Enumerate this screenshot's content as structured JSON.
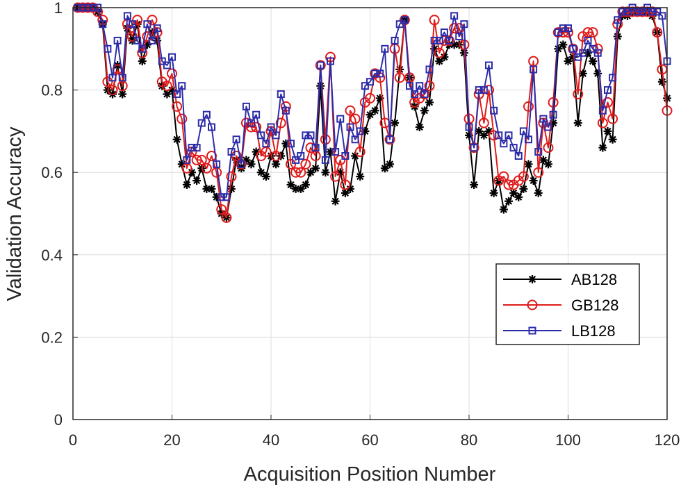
{
  "chart_data": {
    "type": "line",
    "title": "",
    "xlabel": "Acquisition Position Number",
    "ylabel": "Validation Accuracy",
    "xlim": [
      0,
      120
    ],
    "ylim": [
      0,
      1
    ],
    "xticks": [
      0,
      20,
      40,
      60,
      80,
      100,
      120
    ],
    "yticks": [
      0,
      0.2,
      0.4,
      0.6,
      0.8,
      1
    ],
    "ytick_labels": [
      "0",
      "0.2",
      "0.4",
      "0.6",
      "0.8",
      "1"
    ],
    "grid": true,
    "legend_position": "lower-right",
    "series": [
      {
        "name": "AB128",
        "color": "#000000",
        "marker": "asterisk",
        "x": [
          1,
          2,
          3,
          4,
          5,
          6,
          7,
          8,
          9,
          10,
          11,
          12,
          13,
          14,
          15,
          16,
          17,
          18,
          19,
          20,
          21,
          22,
          23,
          24,
          25,
          26,
          27,
          28,
          29,
          30,
          31,
          32,
          33,
          34,
          35,
          36,
          37,
          38,
          39,
          40,
          41,
          42,
          43,
          44,
          45,
          46,
          47,
          48,
          49,
          50,
          51,
          52,
          53,
          54,
          55,
          56,
          57,
          58,
          59,
          60,
          61,
          62,
          63,
          64,
          65,
          66,
          67,
          68,
          69,
          70,
          71,
          72,
          73,
          74,
          75,
          76,
          77,
          78,
          79,
          80,
          81,
          82,
          83,
          84,
          85,
          86,
          87,
          88,
          89,
          90,
          91,
          92,
          93,
          94,
          95,
          96,
          97,
          98,
          99,
          100,
          101,
          102,
          103,
          104,
          105,
          106,
          107,
          108,
          109,
          110,
          111,
          112,
          113,
          114,
          115,
          116,
          117,
          118,
          119,
          120
        ],
        "values": [
          1.0,
          1.0,
          1.0,
          1.0,
          0.99,
          0.96,
          0.8,
          0.79,
          0.86,
          0.79,
          0.95,
          0.92,
          0.96,
          0.87,
          0.91,
          0.94,
          0.92,
          0.81,
          0.79,
          0.8,
          0.68,
          0.62,
          0.57,
          0.6,
          0.58,
          0.61,
          0.56,
          0.56,
          0.54,
          0.5,
          0.49,
          0.56,
          0.63,
          0.61,
          0.63,
          0.62,
          0.65,
          0.6,
          0.59,
          0.64,
          0.62,
          0.64,
          0.67,
          0.57,
          0.56,
          0.56,
          0.57,
          0.6,
          0.61,
          0.81,
          0.6,
          0.65,
          0.53,
          0.6,
          0.55,
          0.56,
          0.64,
          0.59,
          0.7,
          0.74,
          0.75,
          0.78,
          0.61,
          0.62,
          0.72,
          0.85,
          0.97,
          0.83,
          0.76,
          0.71,
          0.75,
          0.77,
          0.9,
          0.87,
          0.88,
          0.91,
          0.91,
          0.91,
          0.89,
          0.69,
          0.57,
          0.7,
          0.69,
          0.7,
          0.55,
          0.58,
          0.51,
          0.53,
          0.55,
          0.54,
          0.56,
          0.62,
          0.58,
          0.55,
          0.63,
          0.62,
          0.72,
          0.9,
          0.91,
          0.87,
          0.88,
          0.72,
          0.84,
          0.89,
          0.87,
          0.84,
          0.66,
          0.7,
          0.68,
          0.93,
          0.98,
          0.98,
          0.99,
          0.99,
          0.99,
          0.99,
          0.98,
          0.94,
          0.82,
          0.78
        ]
      },
      {
        "name": "GB128",
        "color": "#e01a1a",
        "marker": "circle",
        "x": [
          1,
          2,
          3,
          4,
          5,
          6,
          7,
          8,
          9,
          10,
          11,
          12,
          13,
          14,
          15,
          16,
          17,
          18,
          19,
          20,
          21,
          22,
          23,
          24,
          25,
          26,
          27,
          28,
          29,
          30,
          31,
          32,
          33,
          34,
          35,
          36,
          37,
          38,
          39,
          40,
          41,
          42,
          43,
          44,
          45,
          46,
          47,
          48,
          49,
          50,
          51,
          52,
          53,
          54,
          55,
          56,
          57,
          58,
          59,
          60,
          61,
          62,
          63,
          64,
          65,
          66,
          67,
          68,
          69,
          70,
          71,
          72,
          73,
          74,
          75,
          76,
          77,
          78,
          79,
          80,
          81,
          82,
          83,
          84,
          85,
          86,
          87,
          88,
          89,
          90,
          91,
          92,
          93,
          94,
          95,
          96,
          97,
          98,
          99,
          100,
          101,
          102,
          103,
          104,
          105,
          106,
          107,
          108,
          109,
          110,
          111,
          112,
          113,
          114,
          115,
          116,
          117,
          118,
          119,
          120
        ],
        "values": [
          1.0,
          1.0,
          1.0,
          1.0,
          0.99,
          0.97,
          0.82,
          0.8,
          0.85,
          0.81,
          0.96,
          0.93,
          0.97,
          0.89,
          0.93,
          0.97,
          0.94,
          0.82,
          0.81,
          0.84,
          0.76,
          0.73,
          0.61,
          0.65,
          0.63,
          0.63,
          0.61,
          0.64,
          0.6,
          0.51,
          0.49,
          0.59,
          0.64,
          0.62,
          0.72,
          0.71,
          0.71,
          0.64,
          0.65,
          0.7,
          0.64,
          0.72,
          0.76,
          0.62,
          0.6,
          0.6,
          0.62,
          0.66,
          0.64,
          0.86,
          0.68,
          0.88,
          0.59,
          0.63,
          0.57,
          0.75,
          0.73,
          0.65,
          0.77,
          0.78,
          0.84,
          0.83,
          0.72,
          0.68,
          0.9,
          0.83,
          0.97,
          0.83,
          0.77,
          0.78,
          0.79,
          0.81,
          0.97,
          0.89,
          0.92,
          0.92,
          0.95,
          0.95,
          0.91,
          0.73,
          0.66,
          0.79,
          0.72,
          0.8,
          0.69,
          0.58,
          0.59,
          0.57,
          0.57,
          0.58,
          0.59,
          0.76,
          0.87,
          0.6,
          0.72,
          0.66,
          0.77,
          0.94,
          0.94,
          0.94,
          0.9,
          0.79,
          0.93,
          0.94,
          0.94,
          0.9,
          0.72,
          0.77,
          0.73,
          0.96,
          0.99,
          0.99,
          0.99,
          0.99,
          0.99,
          0.99,
          0.99,
          0.94,
          0.85,
          0.75
        ]
      },
      {
        "name": "LB128",
        "color": "#2c2ca8",
        "marker": "square",
        "x": [
          1,
          2,
          3,
          4,
          5,
          6,
          7,
          8,
          9,
          10,
          11,
          12,
          13,
          14,
          15,
          16,
          17,
          18,
          19,
          20,
          21,
          22,
          23,
          24,
          25,
          26,
          27,
          28,
          29,
          30,
          31,
          32,
          33,
          34,
          35,
          36,
          37,
          38,
          39,
          40,
          41,
          42,
          43,
          44,
          45,
          46,
          47,
          48,
          49,
          50,
          51,
          52,
          53,
          54,
          55,
          56,
          57,
          58,
          59,
          60,
          61,
          62,
          63,
          64,
          65,
          66,
          67,
          68,
          69,
          70,
          71,
          72,
          73,
          74,
          75,
          76,
          77,
          78,
          79,
          80,
          81,
          82,
          83,
          84,
          85,
          86,
          87,
          88,
          89,
          90,
          91,
          92,
          93,
          94,
          95,
          96,
          97,
          98,
          99,
          100,
          101,
          102,
          103,
          104,
          105,
          106,
          107,
          108,
          109,
          110,
          111,
          112,
          113,
          114,
          115,
          116,
          117,
          118,
          119,
          120
        ],
        "values": [
          1.0,
          1.0,
          1.0,
          1.0,
          1.0,
          0.96,
          0.9,
          0.83,
          0.92,
          0.83,
          0.98,
          0.96,
          0.92,
          0.9,
          0.96,
          0.92,
          0.95,
          0.87,
          0.86,
          0.88,
          0.79,
          0.81,
          0.63,
          0.66,
          0.66,
          0.72,
          0.74,
          0.71,
          0.62,
          0.54,
          0.54,
          0.65,
          0.68,
          0.62,
          0.76,
          0.72,
          0.74,
          0.69,
          0.67,
          0.71,
          0.69,
          0.79,
          0.75,
          0.67,
          0.63,
          0.64,
          0.69,
          0.69,
          0.66,
          0.86,
          0.63,
          0.87,
          0.65,
          0.73,
          0.64,
          0.71,
          0.68,
          0.7,
          0.81,
          0.82,
          0.84,
          0.84,
          0.9,
          0.68,
          0.92,
          0.96,
          0.97,
          0.81,
          0.79,
          0.81,
          0.79,
          0.85,
          0.92,
          0.92,
          0.94,
          0.92,
          0.98,
          0.93,
          0.96,
          0.71,
          0.66,
          0.8,
          0.8,
          0.86,
          0.75,
          0.69,
          0.67,
          0.69,
          0.66,
          0.64,
          0.7,
          0.68,
          0.85,
          0.65,
          0.73,
          0.71,
          0.74,
          0.94,
          0.95,
          0.95,
          0.9,
          0.88,
          0.89,
          0.92,
          0.9,
          0.89,
          0.75,
          0.8,
          0.83,
          0.97,
          0.99,
          0.99,
          1.0,
          0.99,
          0.99,
          1.0,
          0.99,
          0.99,
          0.98,
          0.87
        ]
      }
    ]
  }
}
